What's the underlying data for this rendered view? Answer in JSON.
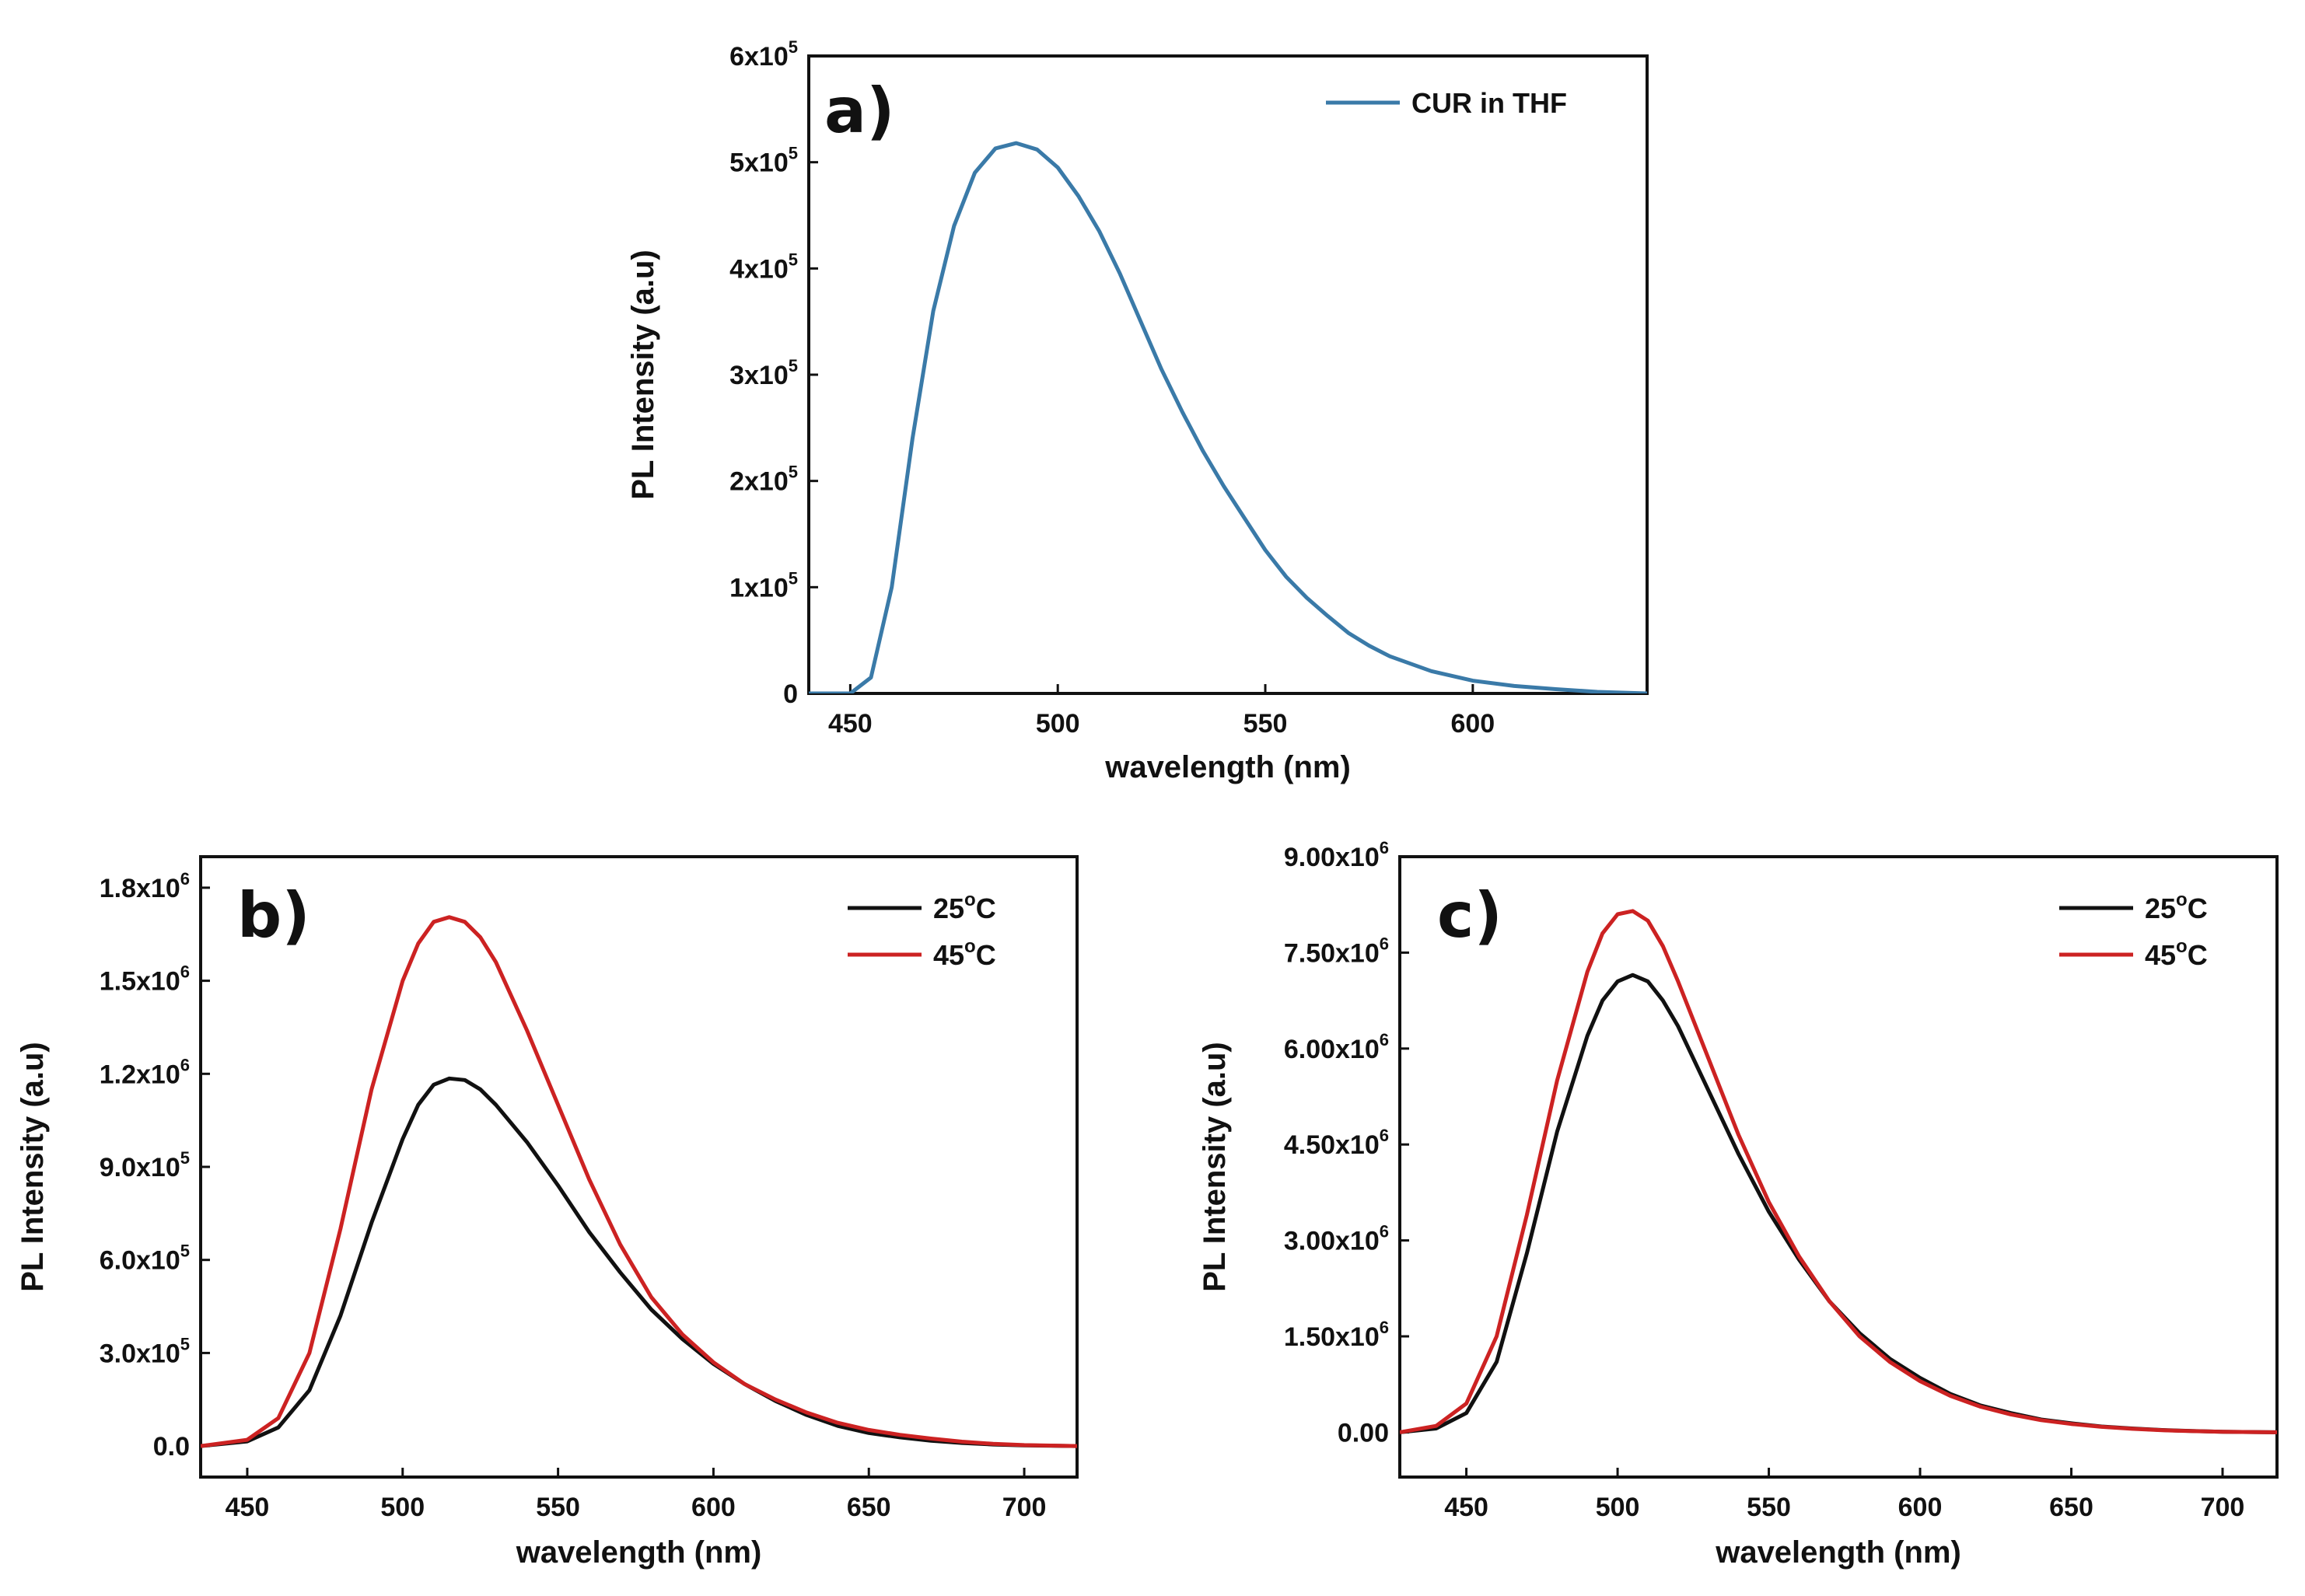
{
  "chart_data": [
    {
      "type": "line",
      "panel_label": "a)",
      "xlabel": "wavelength (nm)",
      "ylabel": "PL Intensity (a.u)",
      "xlim": [
        440,
        642
      ],
      "ylim": [
        0,
        600000
      ],
      "xticks": [
        450,
        500,
        550,
        600
      ],
      "xtick_labels": [
        "450",
        "500",
        "550",
        "600"
      ],
      "yticks": [
        0,
        100000,
        200000,
        300000,
        400000,
        500000,
        600000
      ],
      "ytick_labels": [
        {
          "base": "0",
          "exp": ""
        },
        {
          "base": "1x10",
          "exp": "5"
        },
        {
          "base": "2x10",
          "exp": "5"
        },
        {
          "base": "3x10",
          "exp": "5"
        },
        {
          "base": "4x10",
          "exp": "5"
        },
        {
          "base": "5x10",
          "exp": "5"
        },
        {
          "base": "6x10",
          "exp": "5"
        }
      ],
      "legend_position": "top-right",
      "series": [
        {
          "name": "CUR in THF",
          "color": "#3a7aa8",
          "x": [
            440,
            450,
            455,
            460,
            465,
            470,
            475,
            480,
            485,
            490,
            495,
            500,
            505,
            510,
            515,
            520,
            525,
            530,
            535,
            540,
            545,
            550,
            555,
            560,
            565,
            570,
            575,
            580,
            590,
            600,
            610,
            620,
            630,
            642
          ],
          "y": [
            0,
            0,
            15000,
            100000,
            240000,
            360000,
            440000,
            490000,
            513000,
            518000,
            512000,
            495000,
            468000,
            435000,
            395000,
            350000,
            305000,
            265000,
            228000,
            195000,
            165000,
            135000,
            110000,
            90000,
            73000,
            57000,
            45000,
            35000,
            21000,
            12000,
            7000,
            4000,
            1500,
            0
          ]
        }
      ]
    },
    {
      "type": "line",
      "panel_label": "b)",
      "xlabel": "wavelength (nm)",
      "ylabel": "PL Intensity (a.u)",
      "xlim": [
        435,
        717
      ],
      "ylim": [
        -100000,
        1900000
      ],
      "xticks": [
        450,
        500,
        550,
        600,
        650,
        700
      ],
      "xtick_labels": [
        "450",
        "500",
        "550",
        "600",
        "650",
        "700"
      ],
      "yticks": [
        0,
        300000,
        600000,
        900000,
        1200000,
        1500000,
        1800000
      ],
      "ytick_labels": [
        {
          "base": "0.0",
          "exp": ""
        },
        {
          "base": "3.0x10",
          "exp": "5"
        },
        {
          "base": "6.0x10",
          "exp": "5"
        },
        {
          "base": "9.0x10",
          "exp": "5"
        },
        {
          "base": "1.2x10",
          "exp": "6"
        },
        {
          "base": "1.5x10",
          "exp": "6"
        },
        {
          "base": "1.8x10",
          "exp": "6"
        }
      ],
      "legend_position": "top-right",
      "series": [
        {
          "name": "25°C",
          "name_parts": [
            "25",
            "o",
            "C"
          ],
          "color": "#111111",
          "x": [
            435,
            450,
            460,
            470,
            480,
            490,
            500,
            505,
            510,
            515,
            520,
            525,
            530,
            540,
            550,
            560,
            570,
            580,
            590,
            600,
            610,
            620,
            630,
            640,
            650,
            660,
            670,
            680,
            690,
            700,
            717
          ],
          "y": [
            0,
            15000,
            60000,
            180000,
            420000,
            720000,
            990000,
            1100000,
            1165000,
            1185000,
            1180000,
            1150000,
            1100000,
            980000,
            840000,
            690000,
            560000,
            440000,
            345000,
            265000,
            200000,
            145000,
            100000,
            65000,
            42000,
            28000,
            17000,
            10000,
            5000,
            2000,
            0
          ]
        },
        {
          "name": "45°C",
          "name_parts": [
            "45",
            "o",
            "C"
          ],
          "color": "#cc2222",
          "x": [
            435,
            450,
            460,
            470,
            480,
            490,
            500,
            505,
            510,
            515,
            520,
            525,
            530,
            540,
            550,
            560,
            570,
            580,
            590,
            600,
            610,
            620,
            630,
            640,
            650,
            660,
            670,
            680,
            690,
            700,
            717
          ],
          "y": [
            0,
            20000,
            90000,
            300000,
            700000,
            1150000,
            1500000,
            1620000,
            1690000,
            1705000,
            1690000,
            1640000,
            1560000,
            1340000,
            1100000,
            860000,
            650000,
            480000,
            360000,
            270000,
            200000,
            150000,
            108000,
            75000,
            52000,
            36000,
            24000,
            14000,
            7000,
            3000,
            0
          ]
        }
      ]
    },
    {
      "type": "line",
      "panel_label": "c)",
      "xlabel": "wavelength (nm)",
      "ylabel": "PL Intensity (a.u)",
      "xlim": [
        428,
        718
      ],
      "ylim": [
        -700000,
        9000000
      ],
      "xticks": [
        450,
        500,
        550,
        600,
        650,
        700
      ],
      "xtick_labels": [
        "450",
        "500",
        "550",
        "600",
        "650",
        "700"
      ],
      "yticks": [
        0,
        1500000,
        3000000,
        4500000,
        6000000,
        7500000,
        9000000
      ],
      "ytick_labels": [
        {
          "base": "0.00",
          "exp": ""
        },
        {
          "base": "1.50x10",
          "exp": "6"
        },
        {
          "base": "3.00x10",
          "exp": "6"
        },
        {
          "base": "4.50x10",
          "exp": "6"
        },
        {
          "base": "6.00x10",
          "exp": "6"
        },
        {
          "base": "7.50x10",
          "exp": "6"
        },
        {
          "base": "9.00x10",
          "exp": "6"
        }
      ],
      "legend_position": "top-right",
      "series": [
        {
          "name": "25°C",
          "name_parts": [
            "25",
            "o",
            "C"
          ],
          "color": "#111111",
          "x": [
            428,
            440,
            450,
            460,
            470,
            480,
            490,
            495,
            500,
            505,
            510,
            515,
            520,
            530,
            540,
            550,
            560,
            570,
            580,
            590,
            600,
            610,
            620,
            630,
            640,
            650,
            660,
            670,
            680,
            690,
            700,
            718
          ],
          "y": [
            0,
            60000,
            300000,
            1100000,
            2800000,
            4700000,
            6200000,
            6750000,
            7050000,
            7150000,
            7050000,
            6750000,
            6350000,
            5350000,
            4350000,
            3450000,
            2700000,
            2050000,
            1550000,
            1150000,
            850000,
            600000,
            420000,
            300000,
            200000,
            140000,
            90000,
            60000,
            35000,
            20000,
            8000,
            0
          ]
        },
        {
          "name": "45°C",
          "name_parts": [
            "45",
            "o",
            "C"
          ],
          "color": "#cc2222",
          "x": [
            428,
            440,
            450,
            460,
            470,
            480,
            490,
            495,
            500,
            505,
            510,
            515,
            520,
            530,
            540,
            550,
            560,
            570,
            580,
            590,
            600,
            610,
            620,
            630,
            640,
            650,
            660,
            670,
            680,
            690,
            700,
            718
          ],
          "y": [
            0,
            100000,
            450000,
            1500000,
            3400000,
            5500000,
            7200000,
            7800000,
            8100000,
            8150000,
            8000000,
            7600000,
            7050000,
            5850000,
            4650000,
            3600000,
            2750000,
            2050000,
            1500000,
            1100000,
            800000,
            570000,
            400000,
            280000,
            190000,
            130000,
            85000,
            55000,
            32000,
            18000,
            7000,
            0
          ]
        }
      ]
    }
  ]
}
